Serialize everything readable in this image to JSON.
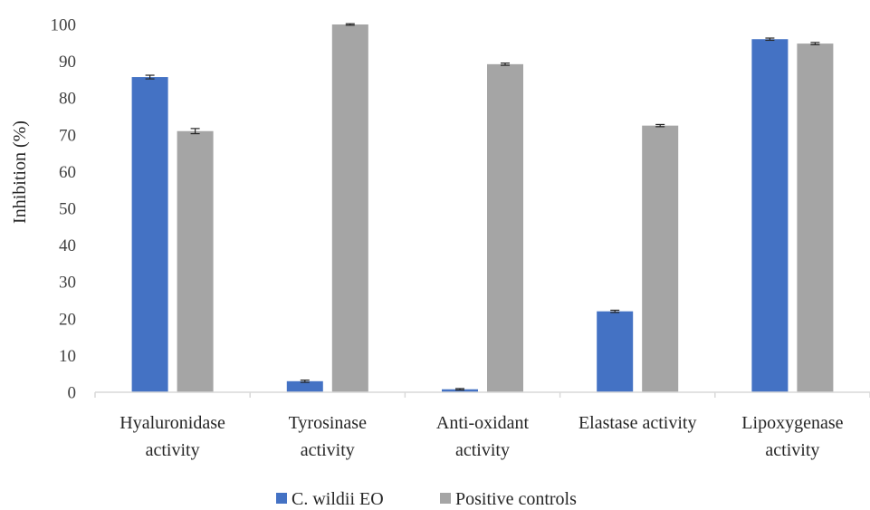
{
  "chart_data": {
    "type": "bar",
    "ylabel": "Inhibition (%)",
    "ylim": [
      0,
      100
    ],
    "yticks": [
      0,
      10,
      20,
      30,
      40,
      50,
      60,
      70,
      80,
      90,
      100
    ],
    "categories": [
      [
        "Hyaluronidase",
        "activity"
      ],
      [
        "Tyrosinase",
        "activity"
      ],
      [
        "Anti-oxidant",
        "activity"
      ],
      [
        "Elastase activity"
      ],
      [
        "Lipoxygenase",
        "activity"
      ]
    ],
    "series": [
      {
        "name": "C. wildii EO",
        "color": "#4472C4",
        "values": [
          85.7,
          3.0,
          0.8,
          22.0,
          96.0
        ],
        "errors": [
          0.5,
          0.3,
          0.2,
          0.3,
          0.3
        ]
      },
      {
        "name": "Positive controls",
        "color": "#A5A5A5",
        "values": [
          71.0,
          100.0,
          89.2,
          72.5,
          94.8
        ],
        "errors": [
          0.7,
          0.2,
          0.3,
          0.3,
          0.3
        ]
      }
    ],
    "legend_position": "bottom",
    "grid": false
  }
}
